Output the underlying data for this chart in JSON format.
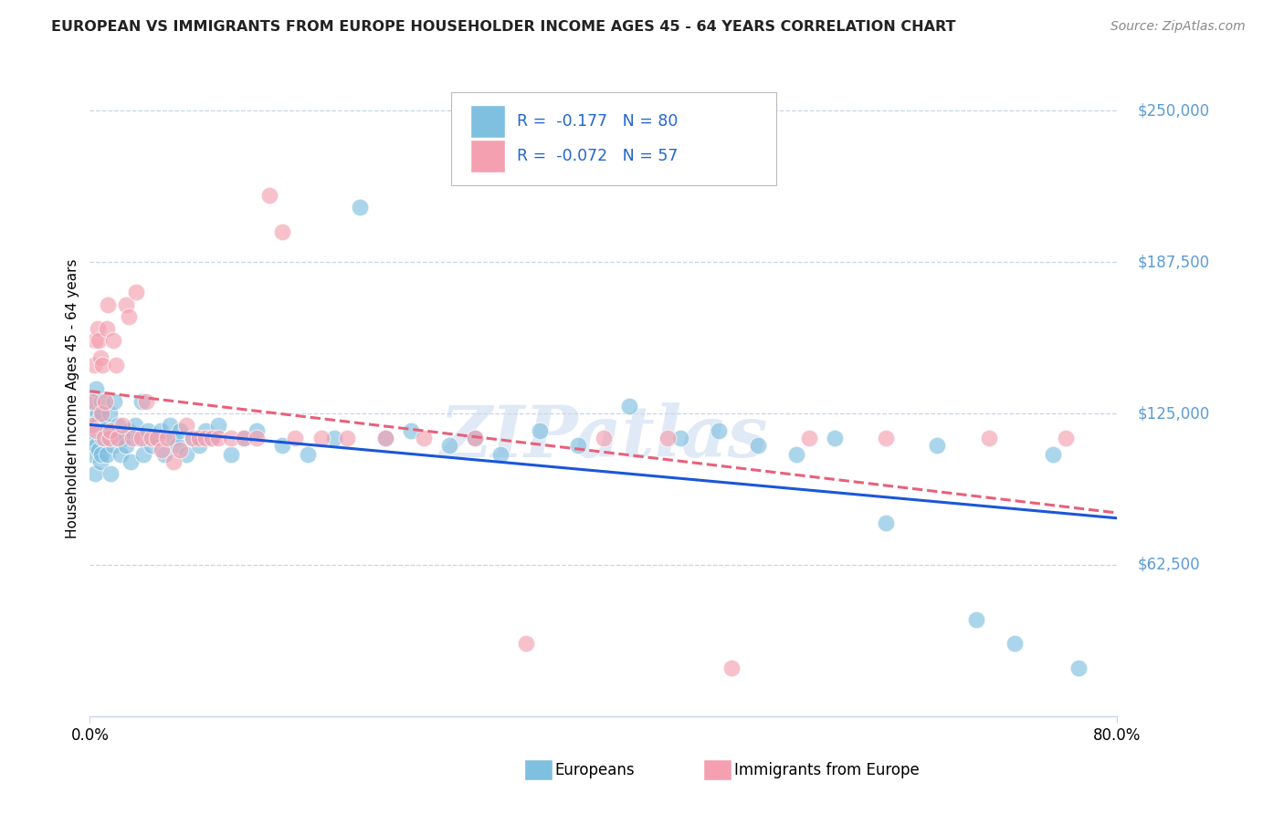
{
  "title": "EUROPEAN VS IMMIGRANTS FROM EUROPE HOUSEHOLDER INCOME AGES 45 - 64 YEARS CORRELATION CHART",
  "source": "Source: ZipAtlas.com",
  "ylabel": "Householder Income Ages 45 - 64 years",
  "ytick_values": [
    62500,
    125000,
    187500,
    250000
  ],
  "ytick_labels": [
    "$62,500",
    "$125,000",
    "$187,500",
    "$250,000"
  ],
  "xmin": 0.0,
  "xmax": 0.8,
  "ymin": 0,
  "ymax": 262000,
  "europeans_color": "#7fbfdf",
  "immigrants_color": "#f4a0b0",
  "trend_european_color": "#1a56db",
  "trend_immigrant_color": "#e8607a",
  "R_european": -0.177,
  "N_european": 80,
  "R_immigrant": -0.072,
  "N_immigrant": 57,
  "watermark": "ZIPatlas",
  "watermark_color": "#c8d8f0",
  "background_color": "#ffffff",
  "grid_color": "#c8d4e8",
  "axis_label_color": "#5b9bd5",
  "legend_european_label": "Europeans",
  "legend_immigrant_label": "Immigrants from Europe",
  "eu_x": [
    0.001,
    0.002,
    0.002,
    0.003,
    0.003,
    0.004,
    0.004,
    0.005,
    0.005,
    0.006,
    0.006,
    0.007,
    0.007,
    0.008,
    0.008,
    0.009,
    0.009,
    0.01,
    0.01,
    0.011,
    0.012,
    0.013,
    0.014,
    0.015,
    0.016,
    0.017,
    0.018,
    0.019,
    0.02,
    0.022,
    0.024,
    0.026,
    0.028,
    0.03,
    0.032,
    0.035,
    0.038,
    0.04,
    0.042,
    0.045,
    0.048,
    0.05,
    0.055,
    0.058,
    0.062,
    0.065,
    0.068,
    0.07,
    0.075,
    0.08,
    0.085,
    0.09,
    0.095,
    0.1,
    0.11,
    0.12,
    0.13,
    0.15,
    0.17,
    0.19,
    0.21,
    0.23,
    0.25,
    0.28,
    0.3,
    0.32,
    0.35,
    0.38,
    0.42,
    0.46,
    0.49,
    0.52,
    0.55,
    0.58,
    0.62,
    0.66,
    0.69,
    0.72,
    0.75,
    0.77
  ],
  "eu_y": [
    118000,
    125000,
    108000,
    130000,
    115000,
    120000,
    100000,
    112000,
    135000,
    118000,
    125000,
    110000,
    122000,
    105000,
    118000,
    130000,
    108000,
    125000,
    115000,
    118000,
    120000,
    108000,
    115000,
    125000,
    100000,
    118000,
    112000,
    130000,
    115000,
    120000,
    108000,
    115000,
    112000,
    118000,
    105000,
    120000,
    115000,
    130000,
    108000,
    118000,
    112000,
    115000,
    118000,
    108000,
    120000,
    115000,
    112000,
    118000,
    108000,
    115000,
    112000,
    118000,
    115000,
    120000,
    108000,
    115000,
    118000,
    112000,
    108000,
    115000,
    210000,
    115000,
    118000,
    112000,
    115000,
    108000,
    118000,
    112000,
    128000,
    115000,
    118000,
    112000,
    108000,
    115000,
    80000,
    112000,
    40000,
    30000,
    108000,
    20000
  ],
  "im_x": [
    0.001,
    0.002,
    0.003,
    0.004,
    0.005,
    0.006,
    0.007,
    0.008,
    0.009,
    0.01,
    0.011,
    0.012,
    0.013,
    0.014,
    0.015,
    0.016,
    0.018,
    0.02,
    0.022,
    0.025,
    0.028,
    0.03,
    0.033,
    0.036,
    0.04,
    0.044,
    0.048,
    0.052,
    0.056,
    0.06,
    0.065,
    0.07,
    0.075,
    0.08,
    0.085,
    0.09,
    0.095,
    0.1,
    0.11,
    0.12,
    0.13,
    0.14,
    0.15,
    0.16,
    0.18,
    0.2,
    0.23,
    0.26,
    0.3,
    0.34,
    0.4,
    0.45,
    0.5,
    0.56,
    0.62,
    0.7,
    0.76
  ],
  "im_y": [
    120000,
    130000,
    145000,
    155000,
    118000,
    160000,
    155000,
    148000,
    125000,
    145000,
    115000,
    130000,
    160000,
    170000,
    115000,
    118000,
    155000,
    145000,
    115000,
    120000,
    170000,
    165000,
    115000,
    175000,
    115000,
    130000,
    115000,
    115000,
    110000,
    115000,
    105000,
    110000,
    120000,
    115000,
    115000,
    115000,
    115000,
    115000,
    115000,
    115000,
    115000,
    215000,
    200000,
    115000,
    115000,
    115000,
    115000,
    115000,
    115000,
    30000,
    115000,
    115000,
    20000,
    115000,
    115000,
    115000,
    115000
  ]
}
